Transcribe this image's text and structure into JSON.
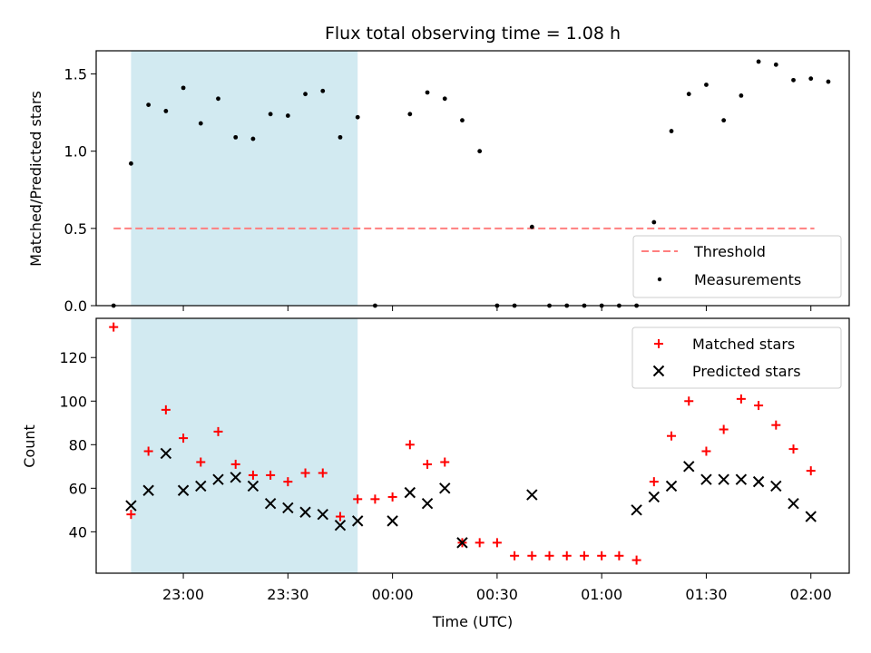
{
  "chart_data": {
    "type": "scatter",
    "title": "Flux total observing time = 1.08 h",
    "xlabel": "Time (UTC)",
    "x_tick_labels": [
      "23:00",
      "23:30",
      "00:00",
      "00:30",
      "01:00",
      "01:30",
      "02:00"
    ],
    "shaded_interval": [
      "22:45",
      "23:50"
    ],
    "x_range": [
      "22:35",
      "02:11"
    ],
    "top": {
      "ylabel": "Matched/Predicted stars",
      "ylim": [
        0,
        1.65
      ],
      "y_ticks": [
        "0.0",
        "0.5",
        "1.0",
        "1.5"
      ],
      "threshold": {
        "name": "Threshold",
        "value": 0.5,
        "x_start": "22:40",
        "x_end": "02:01",
        "color": "#ff7f7f"
      },
      "measurements_name": "Measurements",
      "measurements": [
        {
          "t": "22:40",
          "v": 0.0
        },
        {
          "t": "22:45",
          "v": 0.92
        },
        {
          "t": "22:50",
          "v": 1.3
        },
        {
          "t": "22:55",
          "v": 1.26
        },
        {
          "t": "23:00",
          "v": 1.41
        },
        {
          "t": "23:05",
          "v": 1.18
        },
        {
          "t": "23:10",
          "v": 1.34
        },
        {
          "t": "23:15",
          "v": 1.09
        },
        {
          "t": "23:20",
          "v": 1.08
        },
        {
          "t": "23:25",
          "v": 1.24
        },
        {
          "t": "23:30",
          "v": 1.23
        },
        {
          "t": "23:35",
          "v": 1.37
        },
        {
          "t": "23:40",
          "v": 1.39
        },
        {
          "t": "23:45",
          "v": 1.09
        },
        {
          "t": "23:50",
          "v": 1.22
        },
        {
          "t": "23:55",
          "v": 0.0
        },
        {
          "t": "00:05",
          "v": 1.24
        },
        {
          "t": "00:10",
          "v": 1.38
        },
        {
          "t": "00:15",
          "v": 1.34
        },
        {
          "t": "00:20",
          "v": 1.2
        },
        {
          "t": "00:25",
          "v": 1.0
        },
        {
          "t": "00:30",
          "v": 0.0
        },
        {
          "t": "00:35",
          "v": 0.0
        },
        {
          "t": "00:40",
          "v": 0.51
        },
        {
          "t": "00:45",
          "v": 0.0
        },
        {
          "t": "00:50",
          "v": 0.0
        },
        {
          "t": "00:55",
          "v": 0.0
        },
        {
          "t": "01:00",
          "v": 0.0
        },
        {
          "t": "01:05",
          "v": 0.0
        },
        {
          "t": "01:10",
          "v": 0.0
        },
        {
          "t": "01:15",
          "v": 0.54
        },
        {
          "t": "01:20",
          "v": 1.13
        },
        {
          "t": "01:25",
          "v": 1.37
        },
        {
          "t": "01:30",
          "v": 1.43
        },
        {
          "t": "01:35",
          "v": 1.2
        },
        {
          "t": "01:40",
          "v": 1.36
        },
        {
          "t": "01:45",
          "v": 1.58
        },
        {
          "t": "01:50",
          "v": 1.56
        },
        {
          "t": "01:55",
          "v": 1.46
        },
        {
          "t": "02:00",
          "v": 1.47
        },
        {
          "t": "02:05",
          "v": 1.45
        }
      ]
    },
    "bottom": {
      "ylabel": "Count",
      "ylim": [
        21,
        138
      ],
      "y_ticks": [
        40,
        60,
        80,
        100,
        120
      ],
      "series": [
        {
          "name": "Matched stars",
          "marker": "plus",
          "color": "#ff0000",
          "points": [
            {
              "t": "22:40",
              "v": 134
            },
            {
              "t": "22:45",
              "v": 48
            },
            {
              "t": "22:50",
              "v": 77
            },
            {
              "t": "22:55",
              "v": 96
            },
            {
              "t": "23:00",
              "v": 83
            },
            {
              "t": "23:05",
              "v": 72
            },
            {
              "t": "23:10",
              "v": 86
            },
            {
              "t": "23:15",
              "v": 71
            },
            {
              "t": "23:20",
              "v": 66
            },
            {
              "t": "23:25",
              "v": 66
            },
            {
              "t": "23:30",
              "v": 63
            },
            {
              "t": "23:35",
              "v": 67
            },
            {
              "t": "23:40",
              "v": 67
            },
            {
              "t": "23:45",
              "v": 47
            },
            {
              "t": "23:50",
              "v": 55
            },
            {
              "t": "23:55",
              "v": 55
            },
            {
              "t": "00:00",
              "v": 56
            },
            {
              "t": "00:05",
              "v": 80
            },
            {
              "t": "00:10",
              "v": 71
            },
            {
              "t": "00:15",
              "v": 72
            },
            {
              "t": "00:20",
              "v": 35
            },
            {
              "t": "00:25",
              "v": 35
            },
            {
              "t": "00:30",
              "v": 35
            },
            {
              "t": "00:35",
              "v": 29
            },
            {
              "t": "00:40",
              "v": 29
            },
            {
              "t": "00:45",
              "v": 29
            },
            {
              "t": "00:50",
              "v": 29
            },
            {
              "t": "00:55",
              "v": 29
            },
            {
              "t": "01:00",
              "v": 29
            },
            {
              "t": "01:05",
              "v": 29
            },
            {
              "t": "01:10",
              "v": 27
            },
            {
              "t": "01:15",
              "v": 63
            },
            {
              "t": "01:20",
              "v": 84
            },
            {
              "t": "01:25",
              "v": 100
            },
            {
              "t": "01:30",
              "v": 77
            },
            {
              "t": "01:35",
              "v": 87
            },
            {
              "t": "01:40",
              "v": 101
            },
            {
              "t": "01:45",
              "v": 98
            },
            {
              "t": "01:50",
              "v": 89
            },
            {
              "t": "01:55",
              "v": 78
            },
            {
              "t": "02:00",
              "v": 68
            }
          ]
        },
        {
          "name": "Predicted stars",
          "marker": "x",
          "color": "#000000",
          "points": [
            {
              "t": "22:45",
              "v": 52
            },
            {
              "t": "22:50",
              "v": 59
            },
            {
              "t": "22:55",
              "v": 76
            },
            {
              "t": "23:00",
              "v": 59
            },
            {
              "t": "23:05",
              "v": 61
            },
            {
              "t": "23:10",
              "v": 64
            },
            {
              "t": "23:15",
              "v": 65
            },
            {
              "t": "23:20",
              "v": 61
            },
            {
              "t": "23:25",
              "v": 53
            },
            {
              "t": "23:30",
              "v": 51
            },
            {
              "t": "23:35",
              "v": 49
            },
            {
              "t": "23:40",
              "v": 48
            },
            {
              "t": "23:45",
              "v": 43
            },
            {
              "t": "23:50",
              "v": 45
            },
            {
              "t": "00:00",
              "v": 45
            },
            {
              "t": "00:05",
              "v": 58
            },
            {
              "t": "00:10",
              "v": 53
            },
            {
              "t": "00:15",
              "v": 60
            },
            {
              "t": "00:20",
              "v": 35
            },
            {
              "t": "00:40",
              "v": 57
            },
            {
              "t": "01:10",
              "v": 50
            },
            {
              "t": "01:15",
              "v": 56
            },
            {
              "t": "01:20",
              "v": 61
            },
            {
              "t": "01:25",
              "v": 70
            },
            {
              "t": "01:30",
              "v": 64
            },
            {
              "t": "01:35",
              "v": 64
            },
            {
              "t": "01:40",
              "v": 64
            },
            {
              "t": "01:45",
              "v": 63
            },
            {
              "t": "01:50",
              "v": 61
            },
            {
              "t": "01:55",
              "v": 53
            },
            {
              "t": "02:00",
              "v": 47
            }
          ]
        }
      ]
    },
    "legend_placement": [
      "lower right",
      "upper right"
    ],
    "shade_color": "#add8e6"
  }
}
